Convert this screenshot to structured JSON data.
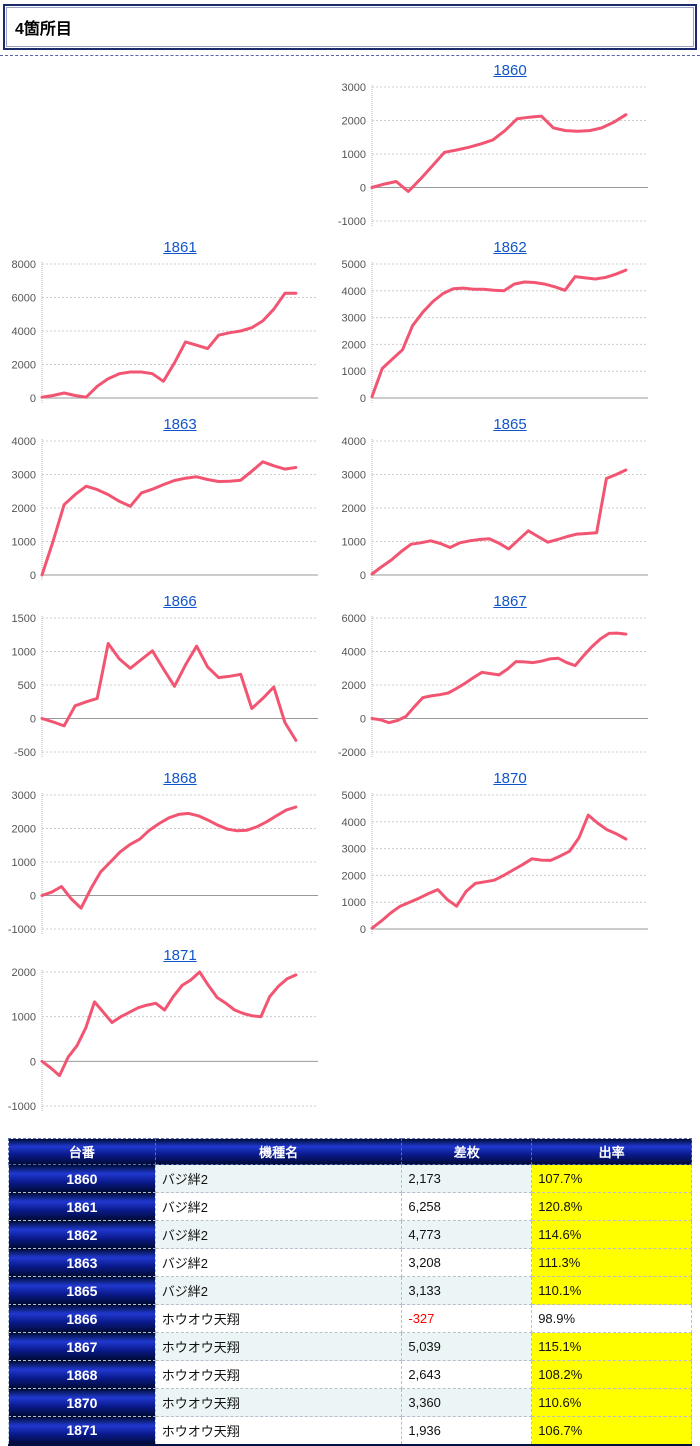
{
  "page_title": "4箇所目",
  "colors": {
    "line": "#f25572",
    "link": "#1155cc",
    "grid": "#cccccc",
    "zero_line": "#999999",
    "axis": "#bbbbbb",
    "highlight_yellow": "#ffff00",
    "negative_red": "#ff0000",
    "header_navy": "#0a1a8c"
  },
  "chart_data": [
    {
      "type": "line",
      "title": "1860",
      "ylim": [
        -1000,
        3000
      ],
      "yticks": [
        3000,
        2000,
        1000,
        0,
        -1000
      ],
      "values": [
        0,
        100,
        180,
        -120,
        250,
        650,
        1050,
        1120,
        1200,
        1300,
        1420,
        1700,
        2050,
        2100,
        2130,
        1780,
        1700,
        1680,
        1700,
        1780,
        1950,
        2173
      ]
    },
    {
      "type": "line",
      "title": "1861",
      "ylim": [
        0,
        8000
      ],
      "yticks": [
        8000,
        6000,
        4000,
        2000,
        0
      ],
      "values": [
        50,
        150,
        300,
        150,
        50,
        700,
        1150,
        1450,
        1550,
        1550,
        1450,
        1000,
        2100,
        3350,
        3150,
        2950,
        3750,
        3900,
        4000,
        4200,
        4600,
        5300,
        6250,
        6258
      ]
    },
    {
      "type": "line",
      "title": "1862",
      "ylim": [
        0,
        5000
      ],
      "yticks": [
        5000,
        4000,
        3000,
        2000,
        1000,
        0
      ],
      "values": [
        50,
        1100,
        1450,
        1800,
        2700,
        3200,
        3600,
        3900,
        4080,
        4100,
        4060,
        4060,
        4020,
        4000,
        4250,
        4330,
        4310,
        4250,
        4150,
        4020,
        4530,
        4480,
        4440,
        4500,
        4620,
        4773
      ]
    },
    {
      "type": "line",
      "title": "1863",
      "ylim": [
        0,
        4000
      ],
      "yticks": [
        4000,
        3000,
        2000,
        1000,
        0
      ],
      "values": [
        0,
        1000,
        2100,
        2400,
        2650,
        2550,
        2400,
        2200,
        2050,
        2450,
        2560,
        2700,
        2820,
        2890,
        2930,
        2850,
        2790,
        2800,
        2830,
        3100,
        3380,
        3260,
        3160,
        3208
      ]
    },
    {
      "type": "line",
      "title": "1865",
      "ylim": [
        0,
        4000
      ],
      "yticks": [
        4000,
        3000,
        2000,
        1000,
        0
      ],
      "values": [
        30,
        250,
        450,
        700,
        920,
        960,
        1020,
        940,
        820,
        960,
        1020,
        1060,
        1080,
        950,
        780,
        1050,
        1320,
        1150,
        980,
        1060,
        1150,
        1220,
        1240,
        1260,
        2880,
        3000,
        3133
      ]
    },
    {
      "type": "line",
      "title": "1866",
      "ylim": [
        -500,
        1500
      ],
      "yticks": [
        1500,
        1000,
        500,
        0,
        -500
      ],
      "values": [
        0,
        -50,
        -110,
        190,
        250,
        300,
        1120,
        890,
        750,
        880,
        1010,
        740,
        480,
        800,
        1080,
        770,
        610,
        630,
        660,
        150,
        300,
        470,
        -60,
        -327
      ]
    },
    {
      "type": "line",
      "title": "1867",
      "ylim": [
        -2000,
        6000
      ],
      "yticks": [
        6000,
        4000,
        2000,
        0,
        -2000
      ],
      "values": [
        0,
        -80,
        -250,
        -120,
        120,
        700,
        1250,
        1350,
        1420,
        1520,
        1800,
        2100,
        2450,
        2760,
        2680,
        2600,
        2950,
        3400,
        3380,
        3340,
        3420,
        3560,
        3600,
        3340,
        3160,
        3750,
        4300,
        4750,
        5080,
        5100,
        5039
      ]
    },
    {
      "type": "line",
      "title": "1868",
      "ylim": [
        -1000,
        3000
      ],
      "yticks": [
        3000,
        2000,
        1000,
        0,
        -1000
      ],
      "values": [
        0,
        100,
        270,
        -100,
        -380,
        200,
        700,
        1000,
        1300,
        1520,
        1680,
        1950,
        2150,
        2320,
        2420,
        2450,
        2380,
        2250,
        2100,
        1980,
        1930,
        1950,
        2050,
        2200,
        2380,
        2550,
        2643
      ]
    },
    {
      "type": "line",
      "title": "1870",
      "ylim": [
        0,
        5000
      ],
      "yticks": [
        5000,
        4000,
        3000,
        2000,
        1000,
        0
      ],
      "values": [
        30,
        300,
        600,
        850,
        1000,
        1150,
        1320,
        1470,
        1100,
        850,
        1400,
        1700,
        1760,
        1820,
        2000,
        2200,
        2400,
        2620,
        2570,
        2560,
        2720,
        2900,
        3400,
        4250,
        3950,
        3700,
        3550,
        3360
      ]
    },
    {
      "type": "line",
      "title": "1871",
      "ylim": [
        -1000,
        2000
      ],
      "yticks": [
        2000,
        1000,
        0,
        -1000
      ],
      "values": [
        0,
        -150,
        -320,
        100,
        350,
        750,
        1330,
        1100,
        870,
        1000,
        1100,
        1200,
        1260,
        1300,
        1150,
        1450,
        1700,
        1820,
        2000,
        1700,
        1430,
        1300,
        1150,
        1070,
        1020,
        1000,
        1450,
        1680,
        1850,
        1936
      ]
    }
  ],
  "table": {
    "headers": [
      "台番",
      "機種名",
      "差枚",
      "出率"
    ],
    "rows": [
      {
        "no": "1860",
        "model": "バジ絆2",
        "diff": "2,173",
        "negative": false,
        "rate": "107.7%",
        "highlight": true,
        "striped": true
      },
      {
        "no": "1861",
        "model": "バジ絆2",
        "diff": "6,258",
        "negative": false,
        "rate": "120.8%",
        "highlight": true,
        "striped": false
      },
      {
        "no": "1862",
        "model": "バジ絆2",
        "diff": "4,773",
        "negative": false,
        "rate": "114.6%",
        "highlight": true,
        "striped": true
      },
      {
        "no": "1863",
        "model": "バジ絆2",
        "diff": "3,208",
        "negative": false,
        "rate": "111.3%",
        "highlight": true,
        "striped": false
      },
      {
        "no": "1865",
        "model": "バジ絆2",
        "diff": "3,133",
        "negative": false,
        "rate": "110.1%",
        "highlight": true,
        "striped": true
      },
      {
        "no": "1866",
        "model": "ホウオウ天翔",
        "diff": "-327",
        "negative": true,
        "rate": "98.9%",
        "highlight": false,
        "striped": false
      },
      {
        "no": "1867",
        "model": "ホウオウ天翔",
        "diff": "5,039",
        "negative": false,
        "rate": "115.1%",
        "highlight": true,
        "striped": true
      },
      {
        "no": "1868",
        "model": "ホウオウ天翔",
        "diff": "2,643",
        "negative": false,
        "rate": "108.2%",
        "highlight": true,
        "striped": false
      },
      {
        "no": "1870",
        "model": "ホウオウ天翔",
        "diff": "3,360",
        "negative": false,
        "rate": "110.6%",
        "highlight": true,
        "striped": true
      },
      {
        "no": "1871",
        "model": "ホウオウ天翔",
        "diff": "1,936",
        "negative": false,
        "rate": "106.7%",
        "highlight": true,
        "striped": false
      }
    ]
  }
}
